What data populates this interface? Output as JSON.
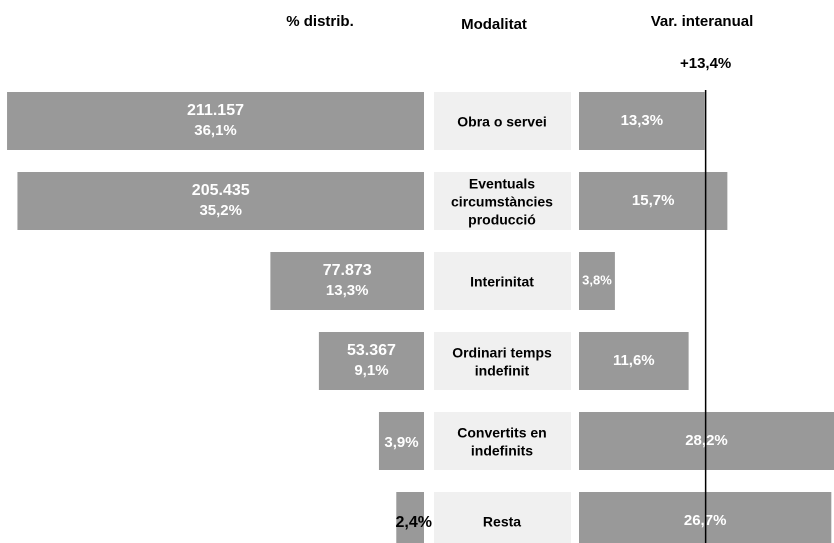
{
  "chart_data": {
    "type": "butterfly",
    "left_title": "% distrib.",
    "center_title": "Modalitat",
    "right_title": "Var. interanual",
    "reference": {
      "value": 13.4,
      "label": "+13,4%"
    },
    "categories": [
      [
        "Obra o servei"
      ],
      [
        "Eventuals",
        "circumstàncies",
        "producció"
      ],
      [
        "Interinitat"
      ],
      [
        "Ordinari temps",
        "indefinit"
      ],
      [
        "Convertits en",
        "indefinits"
      ],
      [
        "Resta"
      ]
    ],
    "color": "#999999",
    "counts": [
      211157,
      205435,
      77873,
      53367,
      null,
      null
    ],
    "count_labels": [
      "211.157",
      "205.435",
      "77.873",
      "53.367",
      null,
      null
    ],
    "shares": [
      36.1,
      35.2,
      13.3,
      9.1,
      3.9,
      2.4
    ],
    "share_labels": [
      "36,1%",
      "35,2%",
      "13,3%",
      "9,1%",
      "3,9%",
      "2,4%"
    ],
    "variation": [
      13.3,
      15.7,
      3.8,
      11.6,
      28.2,
      26.7
    ],
    "variation_labels": [
      "13,3%",
      "15,7%",
      "3,8%",
      "11,6%",
      "28,2%",
      "26,7%"
    ]
  }
}
